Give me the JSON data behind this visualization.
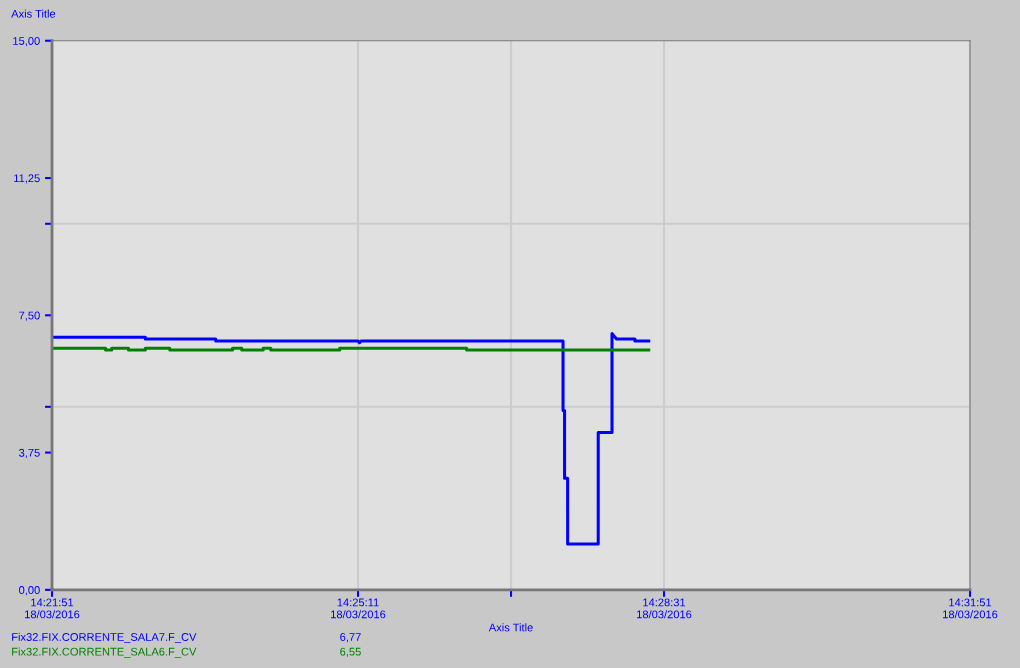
{
  "chart_data": {
    "type": "line",
    "xlabel": "Axis Title",
    "ylabel": "Axis Title",
    "xlim": [
      "2016-03-18T14:21:51",
      "2016-03-18T14:31:51"
    ],
    "ylim": [
      0,
      15
    ],
    "xticks": [
      {
        "value": "2016-03-18T14:21:51",
        "label": "14:21:51\n18/03/2016"
      },
      {
        "value": "2016-03-18T14:25:11",
        "label": "14:25:11\n18/03/2016"
      },
      {
        "value": "2016-03-18T14:26:51",
        "label": null
      },
      {
        "value": "2016-03-18T14:28:31",
        "label": "14:28:31\n18/03/2016"
      },
      {
        "value": "2016-03-18T14:31:51",
        "label": "14:31:51\n18/03/2016"
      }
    ],
    "yticks": [
      {
        "value": 0,
        "label": "0,00"
      },
      {
        "value": 3.75,
        "label": "3,75"
      },
      {
        "value": 5,
        "label": null
      },
      {
        "value": 7.5,
        "label": "7,50"
      },
      {
        "value": 10,
        "label": null
      },
      {
        "value": 11.25,
        "label": "11,25"
      },
      {
        "value": 15,
        "label": "15,00"
      }
    ],
    "grid": true,
    "legend": "bottom",
    "series": [
      {
        "name": "Fix32.FIX.CORRENTE_SALA7.F_CV",
        "color": "#0000ff",
        "x": [
          "2016-03-18T14:21:51",
          "2016-03-18T14:22:52",
          "2016-03-18T14:22:52",
          "2016-03-18T14:23:38",
          "2016-03-18T14:23:38",
          "2016-03-18T14:25:11",
          "2016-03-18T14:25:12",
          "2016-03-18T14:25:13",
          "2016-03-18T14:27:25",
          "2016-03-18T14:27:25",
          "2016-03-18T14:27:26",
          "2016-03-18T14:27:26",
          "2016-03-18T14:27:28",
          "2016-03-18T14:27:28",
          "2016-03-18T14:27:48",
          "2016-03-18T14:27:48",
          "2016-03-18T14:27:57",
          "2016-03-18T14:27:57",
          "2016-03-18T14:27:58",
          "2016-03-18T14:28:00",
          "2016-03-18T14:28:12",
          "2016-03-18T14:28:12",
          "2016-03-18T14:28:21"
        ],
        "values": [
          6.9,
          6.9,
          6.85,
          6.85,
          6.8,
          6.8,
          6.75,
          6.8,
          6.8,
          4.9,
          4.9,
          3.05,
          3.05,
          1.25,
          1.25,
          4.3,
          4.3,
          7.0,
          6.95,
          6.85,
          6.85,
          6.8,
          6.8
        ]
      },
      {
        "name": "Fix32.FIX.CORRENTE_SALA6.F_CV",
        "color": "#008000",
        "x": [
          "2016-03-18T14:21:51",
          "2016-03-18T14:22:26",
          "2016-03-18T14:22:26",
          "2016-03-18T14:22:30",
          "2016-03-18T14:22:30",
          "2016-03-18T14:22:41",
          "2016-03-18T14:22:41",
          "2016-03-18T14:22:52",
          "2016-03-18T14:22:52",
          "2016-03-18T14:23:08",
          "2016-03-18T14:23:08",
          "2016-03-18T14:23:49",
          "2016-03-18T14:23:49",
          "2016-03-18T14:23:55",
          "2016-03-18T14:23:55",
          "2016-03-18T14:24:09",
          "2016-03-18T14:24:09",
          "2016-03-18T14:24:14",
          "2016-03-18T14:24:14",
          "2016-03-18T14:24:59",
          "2016-03-18T14:24:59",
          "2016-03-18T14:26:22",
          "2016-03-18T14:26:22",
          "2016-03-18T14:26:34",
          "2016-03-18T14:26:34",
          "2016-03-18T14:28:21"
        ],
        "values": [
          6.6,
          6.6,
          6.55,
          6.55,
          6.6,
          6.6,
          6.55,
          6.55,
          6.6,
          6.6,
          6.55,
          6.55,
          6.6,
          6.6,
          6.55,
          6.55,
          6.6,
          6.6,
          6.55,
          6.55,
          6.6,
          6.6,
          6.55,
          6.55,
          6.55,
          6.55
        ]
      }
    ],
    "annotations": [
      "6,77",
      "6,55"
    ]
  }
}
